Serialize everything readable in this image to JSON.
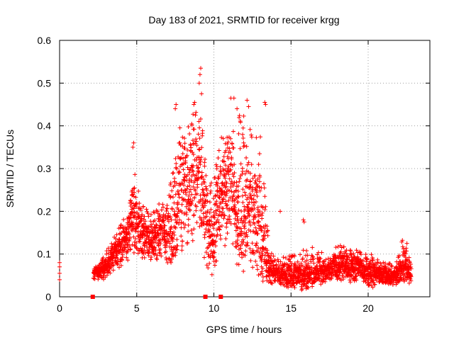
{
  "chart_data": {
    "type": "scatter",
    "title": "Day 183 of 2021, SRMTID for receiver krgg",
    "xlabel": "GPS time / hours",
    "ylabel": "SRMTID / TECUs",
    "xlim": [
      0,
      24
    ],
    "ylim": [
      0,
      0.6
    ],
    "xticks": [
      0,
      5,
      10,
      15,
      20
    ],
    "yticks": [
      0,
      0.1,
      0.2,
      0.3,
      0.4,
      0.5,
      0.6
    ],
    "grid": true,
    "legend": "none",
    "series_color": "#ff0000",
    "marker": "plus",
    "gap_markers": {
      "marker": "square",
      "x": [
        2.15,
        9.45,
        10.45
      ],
      "y": [
        0,
        0,
        0
      ]
    },
    "envelope": {
      "description": "Dense scatter of SRMTID values; per time bin approximate lower/upper bounds and centre",
      "x": [
        0.0,
        2.2,
        2.6,
        3.0,
        3.5,
        4.0,
        4.5,
        4.8,
        5.0,
        5.5,
        6.0,
        6.5,
        7.0,
        7.5,
        7.8,
        8.2,
        8.6,
        9.0,
        9.3,
        9.6,
        9.9,
        10.3,
        10.7,
        11.0,
        11.4,
        11.8,
        12.2,
        12.6,
        13.0,
        13.4,
        13.8,
        14.3,
        14.8,
        15.3,
        15.8,
        16.3,
        16.8,
        17.3,
        17.8,
        18.3,
        18.8,
        19.3,
        19.8,
        20.3,
        20.8,
        21.3,
        21.8,
        22.2,
        22.5,
        22.8
      ],
      "low": [
        0.04,
        0.04,
        0.04,
        0.04,
        0.06,
        0.07,
        0.08,
        0.1,
        0.1,
        0.1,
        0.09,
        0.08,
        0.07,
        0.08,
        0.09,
        0.12,
        0.13,
        0.14,
        0.1,
        0.06,
        0.05,
        0.08,
        0.1,
        0.11,
        0.1,
        0.08,
        0.06,
        0.06,
        0.05,
        0.04,
        0.03,
        0.03,
        0.02,
        0.02,
        0.02,
        0.03,
        0.03,
        0.04,
        0.04,
        0.04,
        0.03,
        0.03,
        0.03,
        0.02,
        0.03,
        0.03,
        0.03,
        0.03,
        0.03,
        0.03
      ],
      "center": [
        0.06,
        0.06,
        0.06,
        0.07,
        0.1,
        0.12,
        0.15,
        0.2,
        0.16,
        0.14,
        0.14,
        0.15,
        0.15,
        0.17,
        0.25,
        0.26,
        0.28,
        0.3,
        0.25,
        0.16,
        0.12,
        0.22,
        0.25,
        0.26,
        0.18,
        0.17,
        0.22,
        0.2,
        0.14,
        0.08,
        0.06,
        0.05,
        0.05,
        0.05,
        0.05,
        0.05,
        0.06,
        0.06,
        0.07,
        0.07,
        0.07,
        0.07,
        0.06,
        0.06,
        0.05,
        0.05,
        0.05,
        0.07,
        0.07,
        0.05
      ],
      "high": [
        0.08,
        0.07,
        0.08,
        0.11,
        0.14,
        0.18,
        0.22,
        0.34,
        0.26,
        0.22,
        0.2,
        0.22,
        0.23,
        0.38,
        0.42,
        0.4,
        0.44,
        0.48,
        0.4,
        0.34,
        0.28,
        0.36,
        0.4,
        0.44,
        0.4,
        0.44,
        0.42,
        0.36,
        0.44,
        0.2,
        0.1,
        0.09,
        0.1,
        0.1,
        0.12,
        0.12,
        0.11,
        0.1,
        0.12,
        0.12,
        0.11,
        0.11,
        0.1,
        0.1,
        0.08,
        0.08,
        0.08,
        0.14,
        0.13,
        0.08
      ]
    },
    "notable_points": {
      "x": [
        0.0,
        0.0,
        0.0,
        0.0,
        4.75,
        4.8,
        7.5,
        7.55,
        8.7,
        8.75,
        9.05,
        9.1,
        9.15,
        9.2,
        11.1,
        11.3,
        11.5,
        12.15,
        12.25,
        13.3,
        13.35,
        14.3,
        15.8,
        15.85
      ],
      "y": [
        0.04,
        0.055,
        0.07,
        0.08,
        0.35,
        0.36,
        0.44,
        0.45,
        0.45,
        0.455,
        0.5,
        0.52,
        0.535,
        0.475,
        0.465,
        0.465,
        0.44,
        0.46,
        0.445,
        0.455,
        0.45,
        0.2,
        0.18,
        0.175
      ]
    },
    "sampling": {
      "interval_hours": 0.01,
      "seed": 183
    }
  }
}
